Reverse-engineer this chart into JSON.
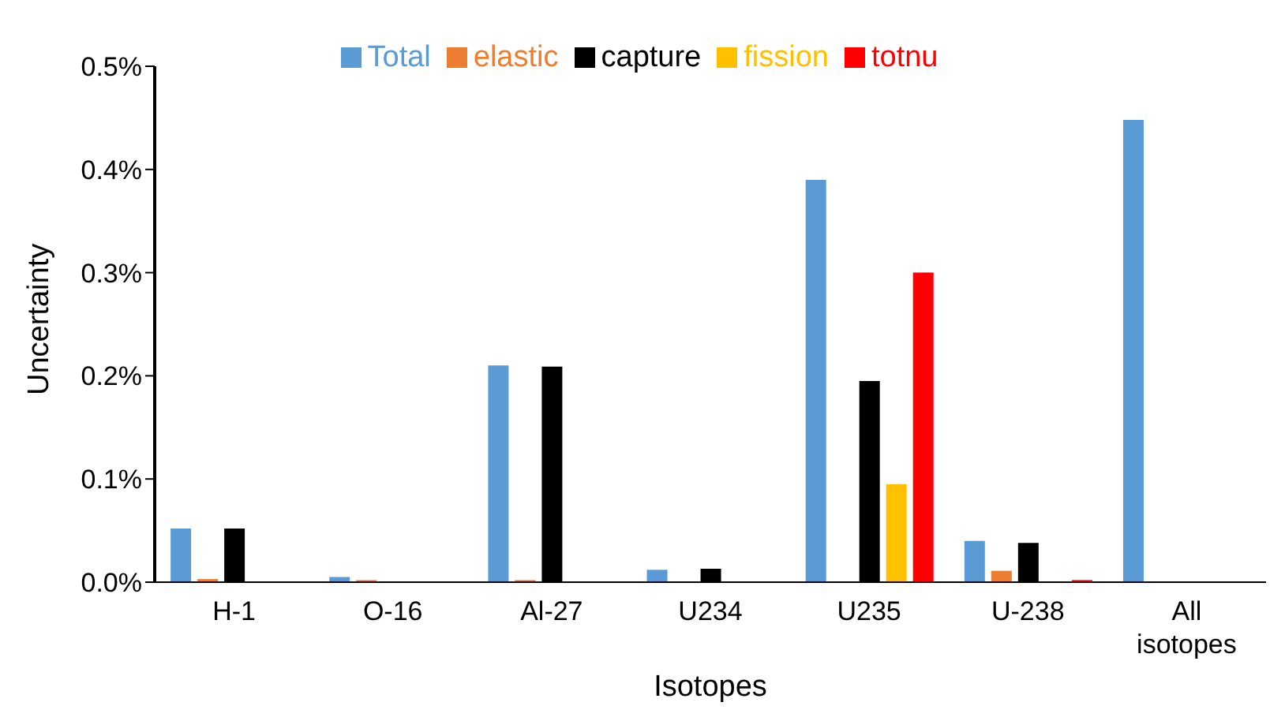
{
  "chart_data": {
    "type": "bar",
    "xlabel": "Isotopes",
    "ylabel": "Uncertainty",
    "categories": [
      "H-1",
      "O-16",
      "Al-27",
      "U234",
      "U235",
      "U-238",
      "All isotopes"
    ],
    "series": [
      {
        "name": "Total",
        "color": "#5b9bd5",
        "values": [
          0.052,
          0.005,
          0.21,
          0.012,
          0.39,
          0.04,
          0.448
        ]
      },
      {
        "name": "elastic",
        "color": "#ed7d31",
        "values": [
          0.003,
          0.002,
          0.002,
          null,
          null,
          0.011,
          null
        ]
      },
      {
        "name": "capture",
        "color": "#000000",
        "values": [
          0.052,
          null,
          0.209,
          0.013,
          0.195,
          0.038,
          null
        ]
      },
      {
        "name": "fission",
        "color": "#ffc000",
        "values": [
          null,
          null,
          null,
          null,
          0.095,
          null,
          null
        ]
      },
      {
        "name": "totnu",
        "color": "#ff0000",
        "values": [
          null,
          null,
          null,
          null,
          0.3,
          0.002,
          null
        ]
      }
    ],
    "ylim": [
      0,
      0.5
    ],
    "yticks": [
      {
        "value": 0,
        "label": "0.0%"
      },
      {
        "value": 0.1,
        "label": "0.1%"
      },
      {
        "value": 0.2,
        "label": "0.2%"
      },
      {
        "value": 0.3,
        "label": "0.3%"
      },
      {
        "value": 0.4,
        "label": "0.4%"
      },
      {
        "value": 0.5,
        "label": "0.5%"
      }
    ],
    "grid": false,
    "legend": "top"
  }
}
